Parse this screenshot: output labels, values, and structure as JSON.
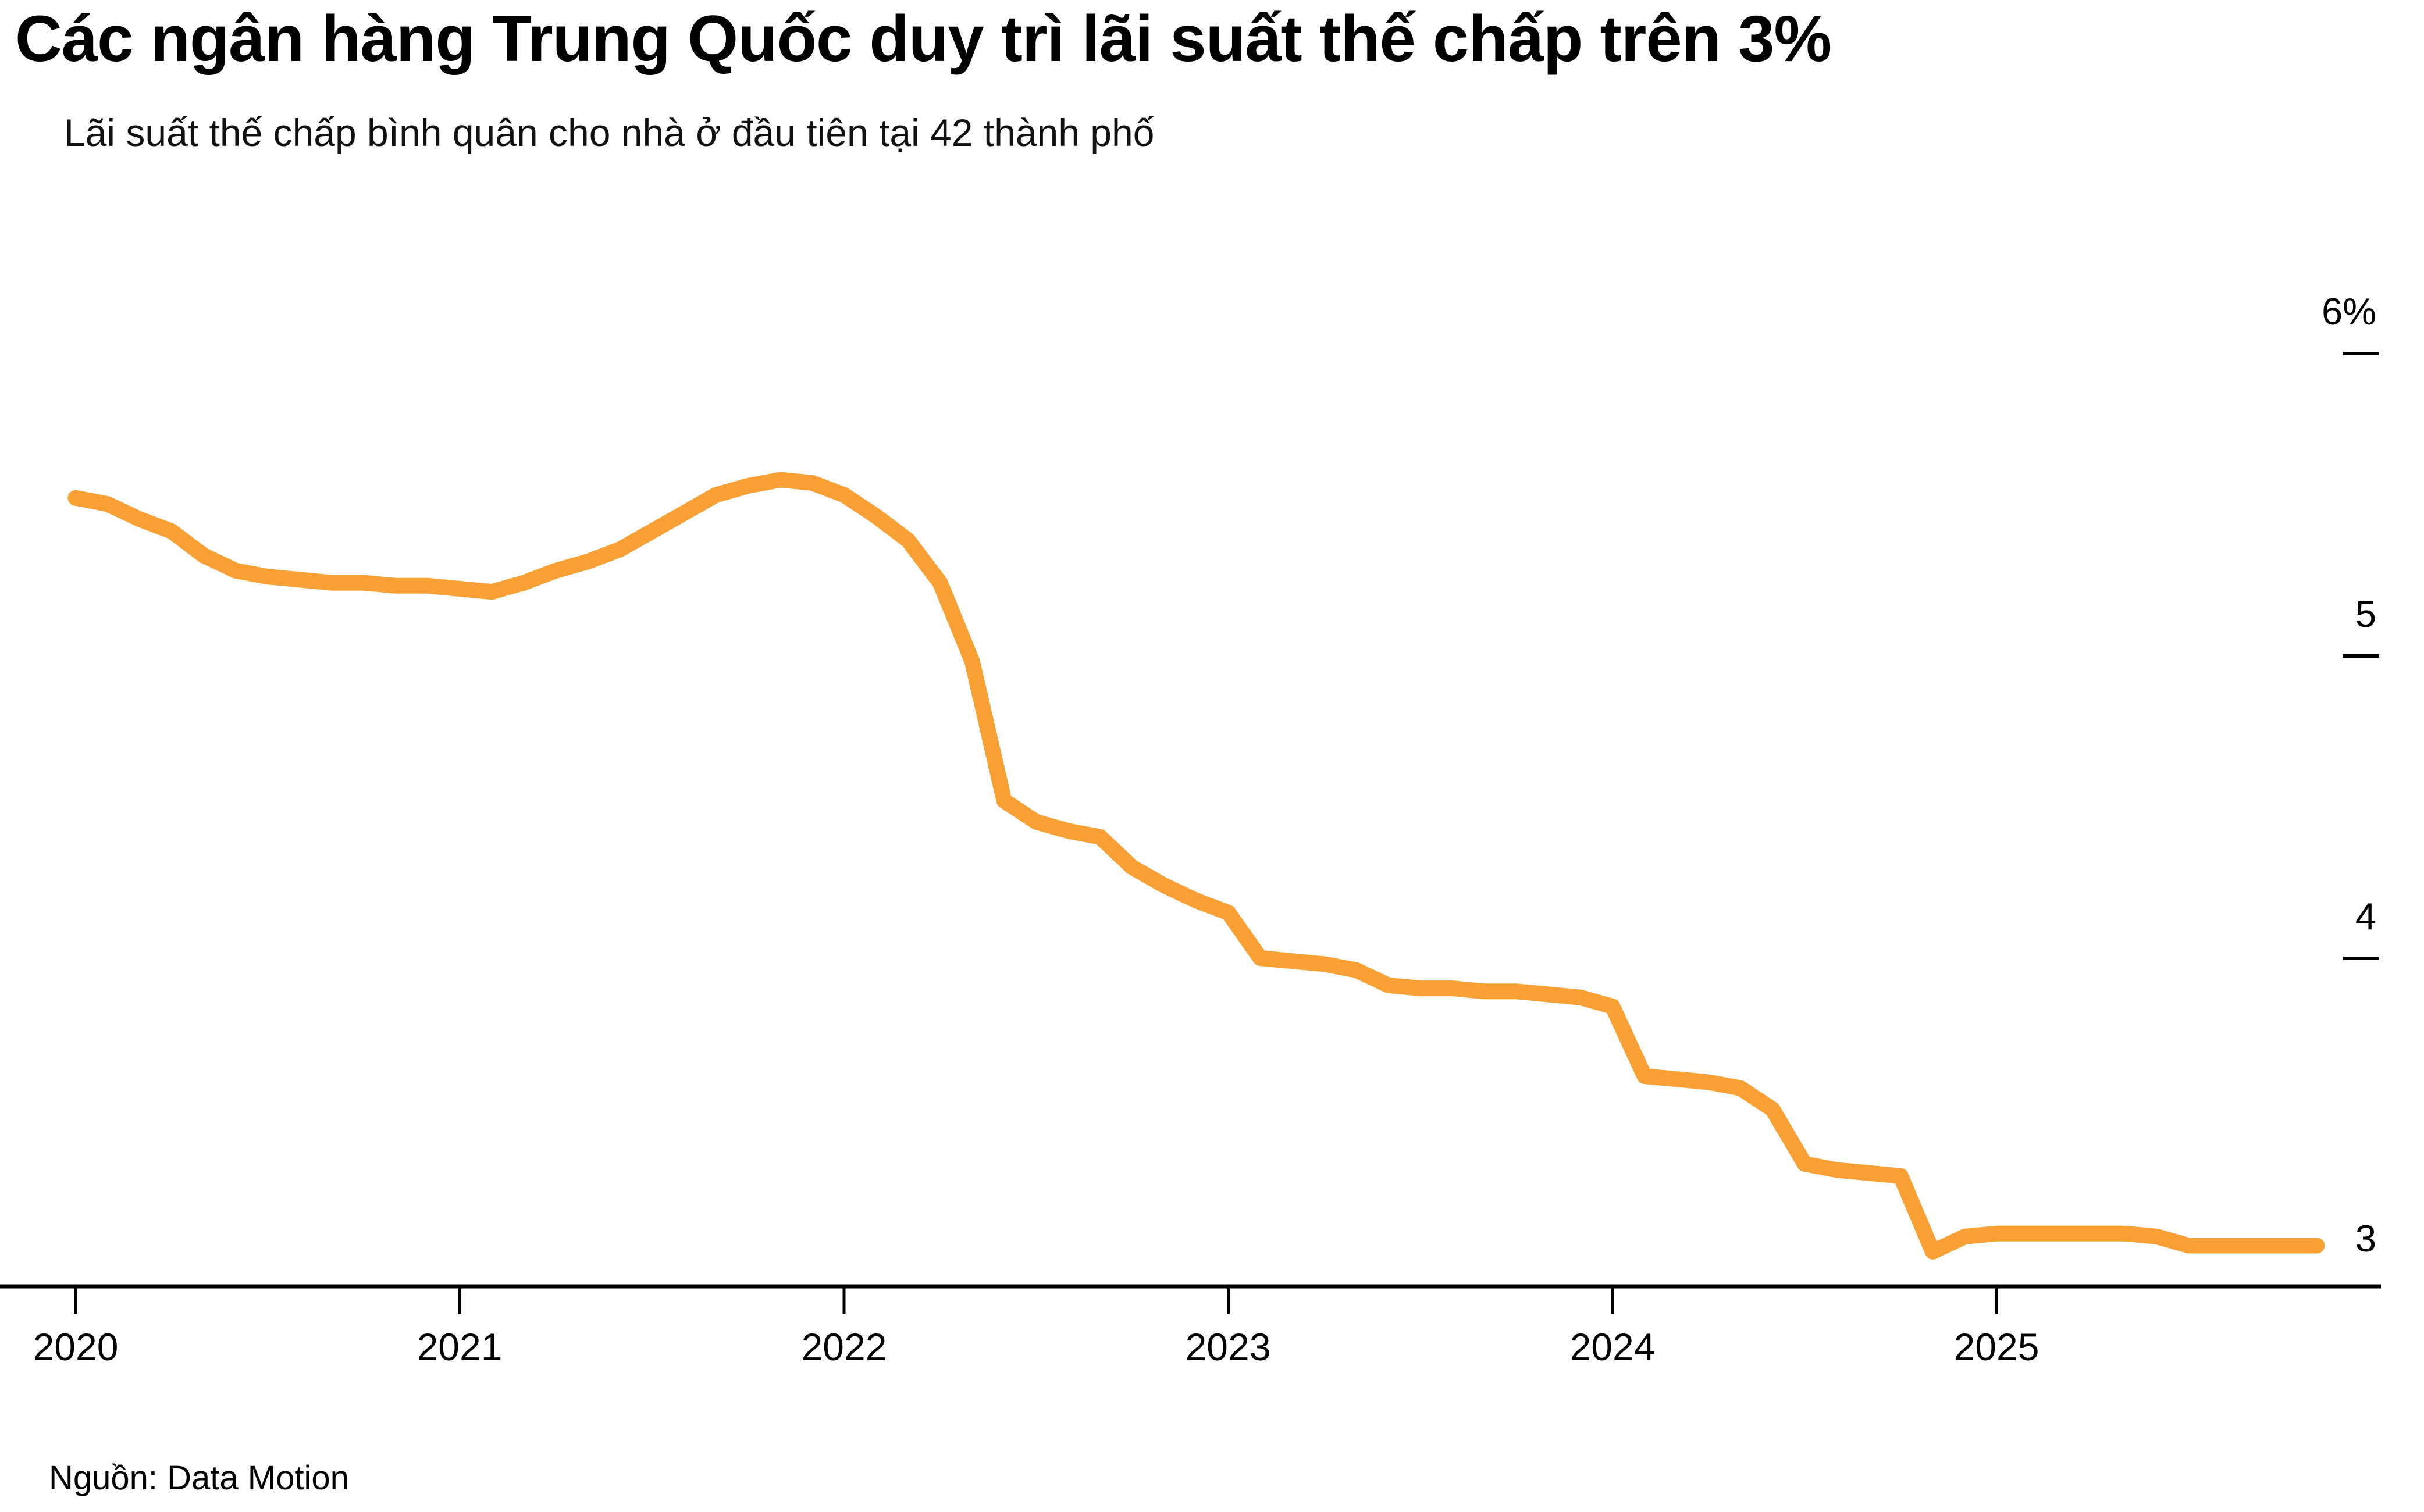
{
  "header": {
    "title": "Các ngân hàng Trung Quốc duy trì lãi suất thế chấp trên 3%",
    "subtitle": "Lãi suất thế chấp bình quân cho nhà ở đầu tiên tại 42 thành phố"
  },
  "footer": {
    "source": "Nguồn: Data Motion"
  },
  "colors": {
    "line": "#F9A035",
    "axis": "#000000",
    "background": "#FFFFFF",
    "text": "#000000"
  },
  "chart_data": {
    "type": "line",
    "title": "Các ngân hàng Trung Quốc duy trì lãi suất thế chấp trên 3%",
    "subtitle": "Lãi suất thế chấp bình quân cho nhà ở đầu tiên tại 42 thành phố",
    "unit": "%",
    "grid": false,
    "legend_position": "none",
    "y_axis_side": "right",
    "ylim": [
      2.92,
      6.15
    ],
    "y_tick_values": [
      6,
      5,
      4,
      3
    ],
    "y_tick_labels": [
      "6%",
      "5",
      "4",
      "3"
    ],
    "x_tick_labels": [
      "2020",
      "2021",
      "2022",
      "2023",
      "2024",
      "2025"
    ],
    "frequency": "monthly",
    "x_start": "2020-01",
    "x_end": "2025-11",
    "x": [
      "2020-01",
      "2020-02",
      "2020-03",
      "2020-04",
      "2020-05",
      "2020-06",
      "2020-07",
      "2020-08",
      "2020-09",
      "2020-10",
      "2020-11",
      "2020-12",
      "2021-01",
      "2021-02",
      "2021-03",
      "2021-04",
      "2021-05",
      "2021-06",
      "2021-07",
      "2021-08",
      "2021-09",
      "2021-10",
      "2021-11",
      "2021-12",
      "2022-01",
      "2022-02",
      "2022-03",
      "2022-04",
      "2022-05",
      "2022-06",
      "2022-07",
      "2022-08",
      "2022-09",
      "2022-10",
      "2022-11",
      "2022-12",
      "2023-01",
      "2023-02",
      "2023-03",
      "2023-04",
      "2023-05",
      "2023-06",
      "2023-07",
      "2023-08",
      "2023-09",
      "2023-10",
      "2023-11",
      "2023-12",
      "2024-01",
      "2024-02",
      "2024-03",
      "2024-04",
      "2024-05",
      "2024-06",
      "2024-07",
      "2024-08",
      "2024-09",
      "2024-10",
      "2024-11",
      "2024-12",
      "2025-01",
      "2025-02",
      "2025-03",
      "2025-04",
      "2025-05",
      "2025-06",
      "2025-07",
      "2025-08",
      "2025-09",
      "2025-10",
      "2025-11"
    ],
    "series": [
      {
        "name": "Lãi suất thế chấp bình quân cho nhà ở đầu tiên (42 thành phố)",
        "color": "#F9A035",
        "values": [
          5.52,
          5.5,
          5.45,
          5.41,
          5.33,
          5.28,
          5.26,
          5.25,
          5.24,
          5.24,
          5.23,
          5.23,
          5.22,
          5.21,
          5.24,
          5.28,
          5.31,
          5.35,
          5.41,
          5.47,
          5.53,
          5.56,
          5.58,
          5.57,
          5.53,
          5.46,
          5.38,
          5.24,
          4.98,
          4.52,
          4.45,
          4.42,
          4.4,
          4.3,
          4.24,
          4.19,
          4.15,
          4.0,
          3.99,
          3.98,
          3.96,
          3.91,
          3.9,
          3.9,
          3.89,
          3.89,
          3.88,
          3.87,
          3.84,
          3.61,
          3.6,
          3.59,
          3.57,
          3.5,
          3.32,
          3.3,
          3.29,
          3.28,
          3.03,
          3.08,
          3.09,
          3.09,
          3.09,
          3.09,
          3.09,
          3.08,
          3.05,
          3.05,
          3.05,
          3.05,
          3.05
        ]
      }
    ]
  }
}
